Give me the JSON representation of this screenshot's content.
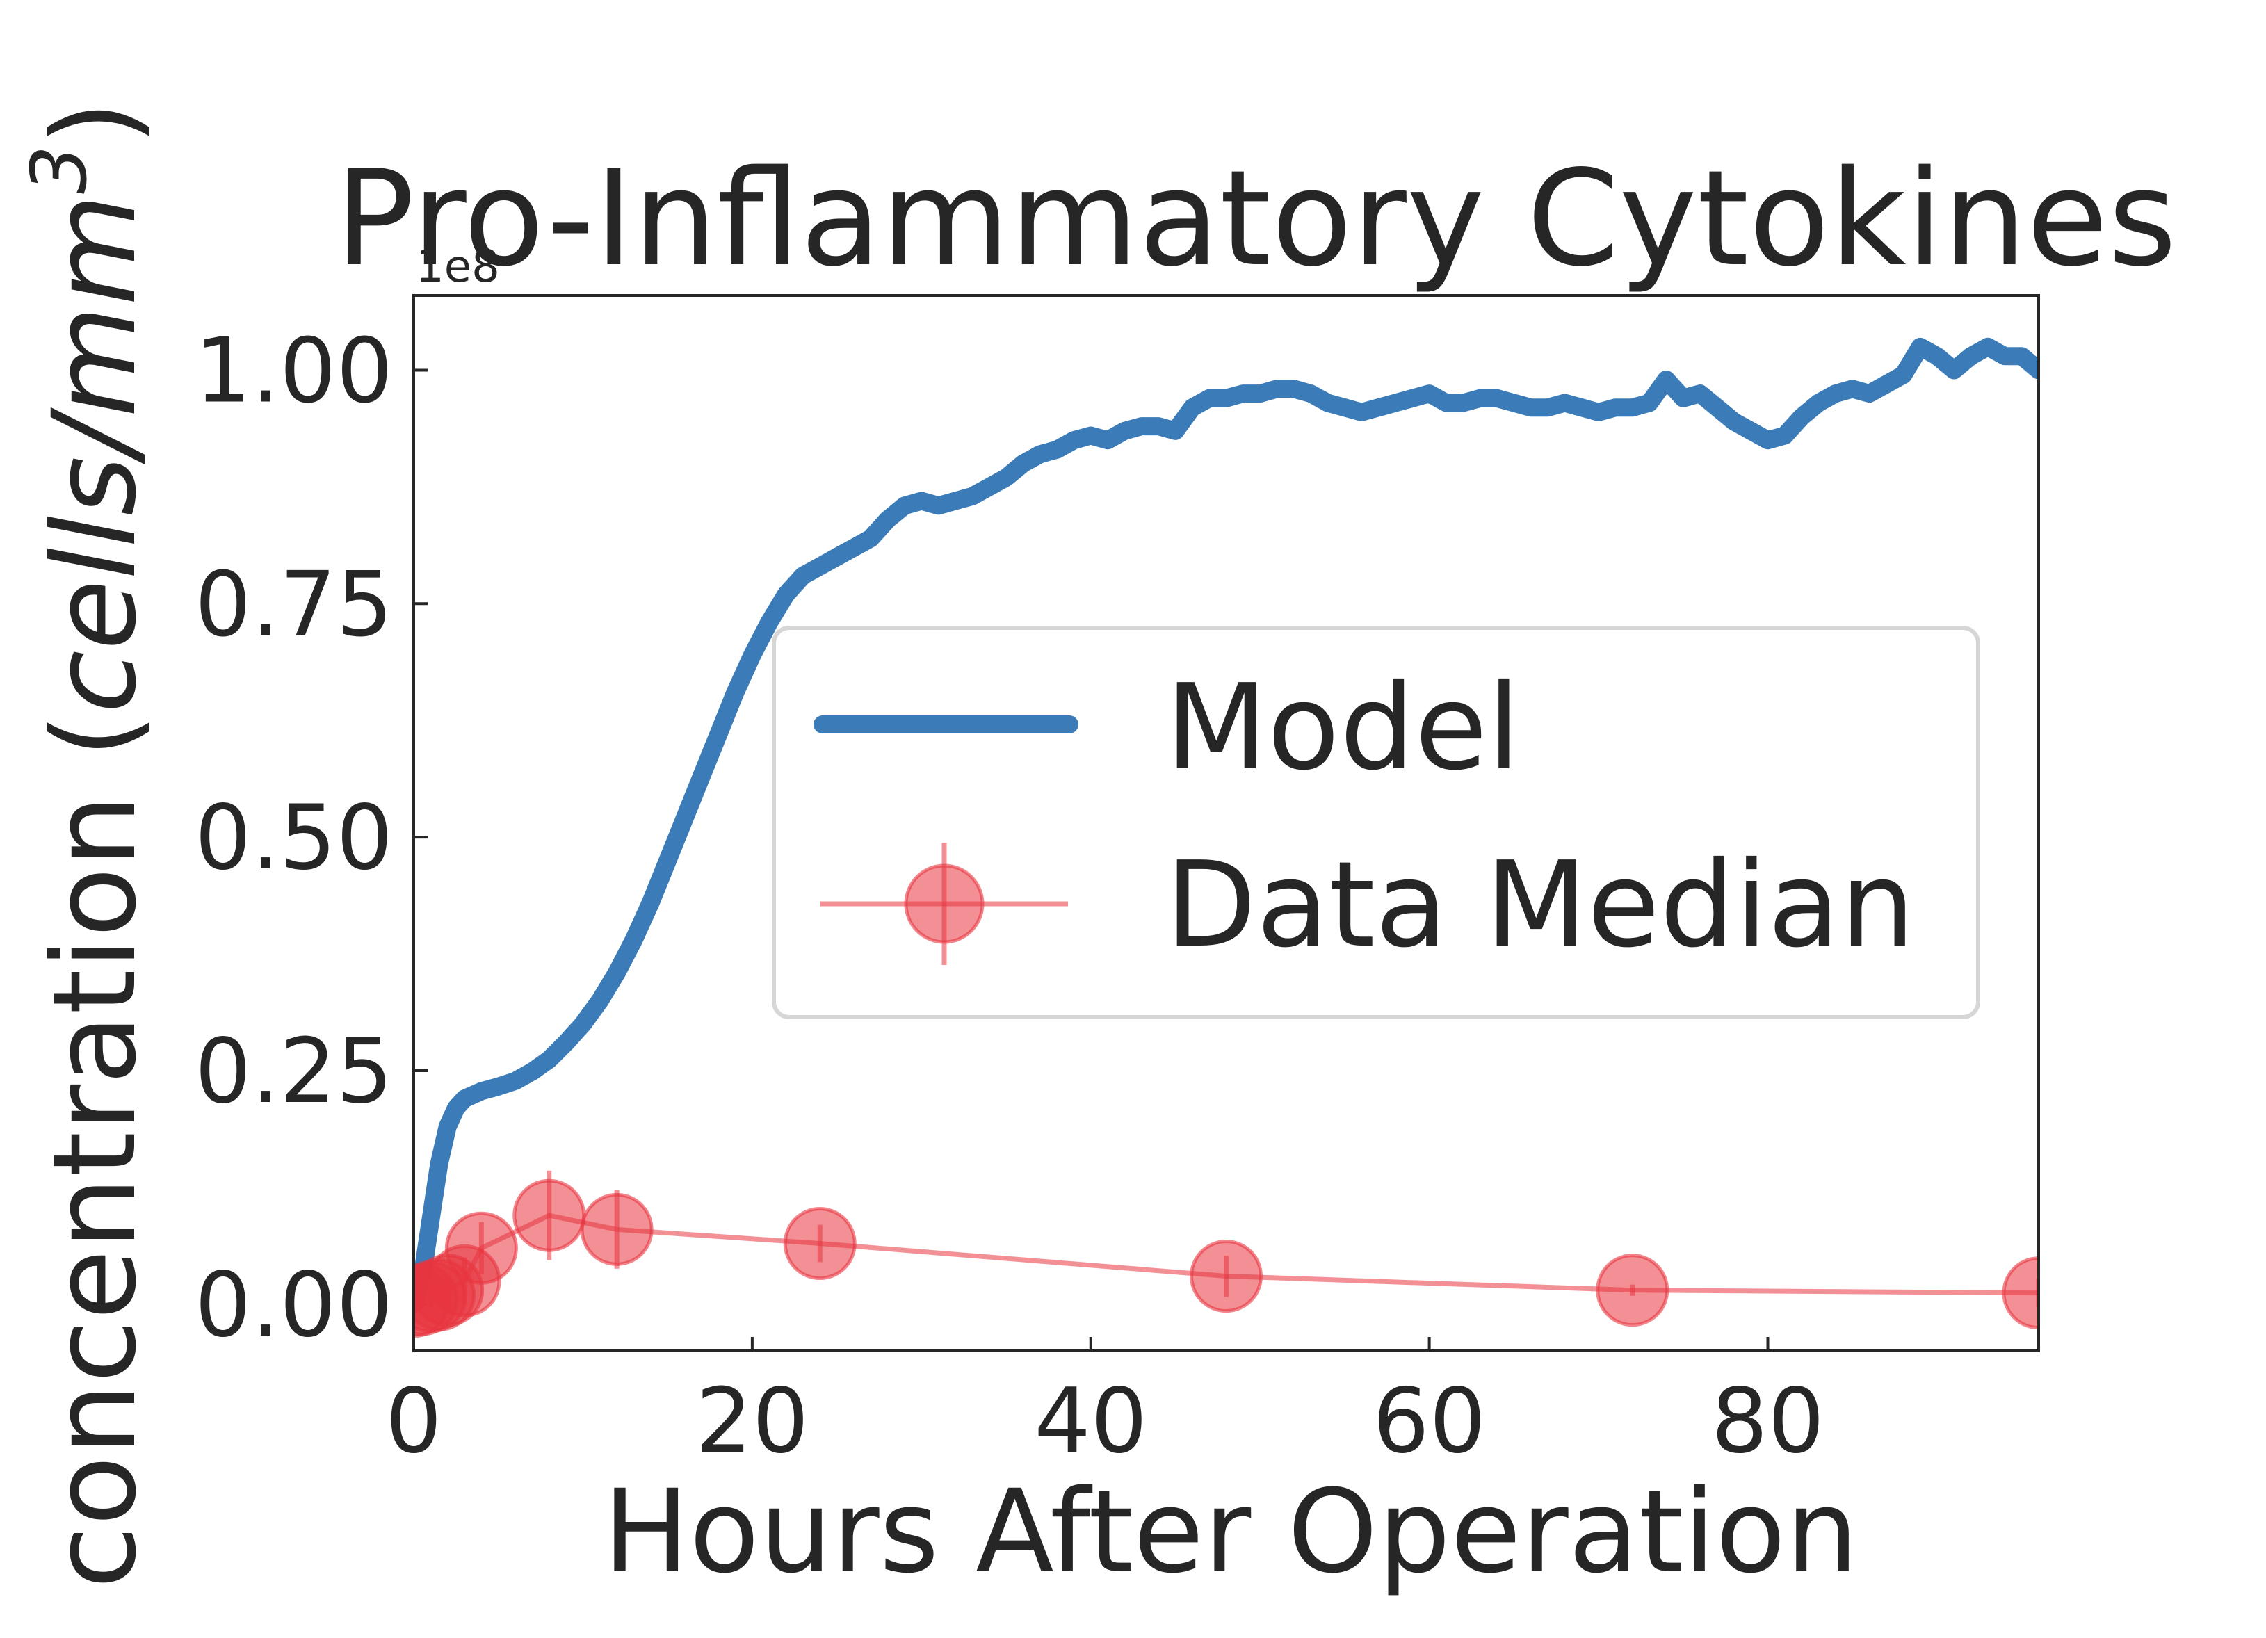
{
  "chart_data": {
    "type": "line",
    "title": "Pro-Inflammatory Cytokines",
    "xlabel": "Hours After Operation",
    "ylabel": "concentration (",
    "ylabel_unit": "cells/mm",
    "ylabel_exp": "3",
    "ylabel_close": ")",
    "y_offset_label": "1e8",
    "xlim": [
      0,
      96
    ],
    "ylim": [
      -5000000,
      108000000
    ],
    "x_ticks": [
      0,
      20,
      40,
      60,
      80
    ],
    "x_tick_labels": [
      "0",
      "20",
      "40",
      "60",
      "80"
    ],
    "y_ticks": [
      0,
      25000000,
      50000000,
      75000000,
      100000000
    ],
    "y_tick_labels": [
      "0.00",
      "0.25",
      "0.50",
      "0.75",
      "1.00"
    ],
    "grid": false,
    "legend_position": "center-right",
    "colors": {
      "model": "#3a7bb8",
      "data": "#e8353f"
    },
    "series": [
      {
        "name": "Model",
        "style": "line",
        "x": [
          0,
          0.5,
          1,
          1.5,
          2,
          2.5,
          3,
          4,
          5,
          6,
          7,
          8,
          9,
          10,
          11,
          12,
          13,
          14,
          15,
          16,
          17,
          18,
          19,
          20,
          21,
          22,
          23,
          24,
          25,
          26,
          27,
          28,
          29,
          30,
          31,
          32,
          33,
          34,
          35,
          36,
          37,
          38,
          39,
          40,
          41,
          42,
          43,
          44,
          45,
          46,
          47,
          48,
          49,
          50,
          51,
          52,
          53,
          54,
          55,
          56,
          57,
          58,
          59,
          60,
          61,
          62,
          63,
          64,
          65,
          66,
          67,
          68,
          69,
          70,
          71,
          72,
          73,
          74,
          75,
          76,
          77,
          78,
          79,
          80,
          81,
          82,
          83,
          84,
          85,
          86,
          87,
          88,
          89,
          90,
          91,
          92,
          93,
          94,
          95,
          96
        ],
        "y": [
          0,
          3000000,
          9000000,
          15000000,
          19000000,
          21000000,
          22000000,
          22800000,
          23300000,
          23900000,
          24900000,
          26200000,
          28000000,
          30000000,
          32500000,
          35500000,
          39000000,
          43000000,
          47500000,
          52000000,
          56500000,
          61000000,
          65500000,
          69500000,
          73000000,
          76000000,
          78000000,
          79000000,
          80000000,
          81000000,
          82000000,
          84000000,
          85500000,
          86000000,
          85500000,
          86000000,
          86500000,
          87500000,
          88500000,
          90000000,
          91000000,
          91500000,
          92500000,
          93000000,
          92500000,
          93500000,
          94000000,
          94000000,
          93500000,
          96000000,
          97000000,
          97000000,
          97500000,
          97500000,
          98000000,
          98000000,
          97500000,
          96500000,
          96000000,
          95500000,
          96000000,
          96500000,
          97000000,
          97500000,
          96500000,
          96500000,
          97000000,
          97000000,
          96500000,
          96000000,
          96000000,
          96500000,
          96000000,
          95500000,
          96000000,
          96000000,
          96500000,
          99000000,
          97000000,
          97500000,
          96000000,
          94500000,
          93500000,
          92500000,
          93000000,
          95000000,
          96500000,
          97500000,
          98000000,
          97500000,
          98500000,
          99500000,
          102500000,
          101500000,
          100000000,
          101500000,
          102500000,
          101500000,
          101500000,
          100000000
        ]
      },
      {
        "name": "Data Median",
        "style": "markers-line",
        "x": [
          0,
          0.5,
          1,
          1.5,
          2,
          3,
          4,
          8,
          12,
          24,
          48,
          72,
          96
        ],
        "y": [
          300000,
          500000,
          800000,
          1000000,
          1500000,
          2500000,
          6000000,
          9500000,
          8000000,
          6500000,
          3000000,
          1500000,
          1200000
        ],
        "yerr": [
          800000,
          900000,
          1200000,
          1200000,
          1500000,
          2500000,
          2800000,
          4800000,
          4200000,
          2000000,
          2200000,
          600000,
          1500000
        ]
      }
    ]
  }
}
